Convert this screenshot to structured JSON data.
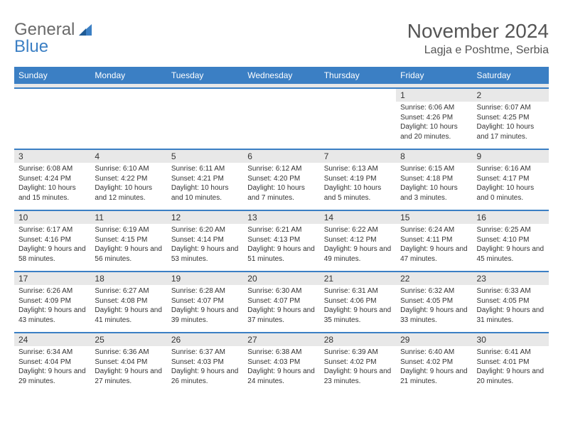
{
  "logo": {
    "word1": "General",
    "word2": "Blue"
  },
  "title": "November 2024",
  "location": "Lagja e Poshtme, Serbia",
  "colors": {
    "accent": "#3b7fc4",
    "header_text": "#ffffff",
    "body_text": "#333333",
    "title_text": "#555555",
    "daynum_bg": "#e8e8e8",
    "logo_gray": "#6a6a6a"
  },
  "day_names": [
    "Sunday",
    "Monday",
    "Tuesday",
    "Wednesday",
    "Thursday",
    "Friday",
    "Saturday"
  ],
  "weeks": [
    [
      {
        "n": "",
        "sr": "",
        "ss": "",
        "dl": ""
      },
      {
        "n": "",
        "sr": "",
        "ss": "",
        "dl": ""
      },
      {
        "n": "",
        "sr": "",
        "ss": "",
        "dl": ""
      },
      {
        "n": "",
        "sr": "",
        "ss": "",
        "dl": ""
      },
      {
        "n": "",
        "sr": "",
        "ss": "",
        "dl": ""
      },
      {
        "n": "1",
        "sr": "Sunrise: 6:06 AM",
        "ss": "Sunset: 4:26 PM",
        "dl": "Daylight: 10 hours and 20 minutes."
      },
      {
        "n": "2",
        "sr": "Sunrise: 6:07 AM",
        "ss": "Sunset: 4:25 PM",
        "dl": "Daylight: 10 hours and 17 minutes."
      }
    ],
    [
      {
        "n": "3",
        "sr": "Sunrise: 6:08 AM",
        "ss": "Sunset: 4:24 PM",
        "dl": "Daylight: 10 hours and 15 minutes."
      },
      {
        "n": "4",
        "sr": "Sunrise: 6:10 AM",
        "ss": "Sunset: 4:22 PM",
        "dl": "Daylight: 10 hours and 12 minutes."
      },
      {
        "n": "5",
        "sr": "Sunrise: 6:11 AM",
        "ss": "Sunset: 4:21 PM",
        "dl": "Daylight: 10 hours and 10 minutes."
      },
      {
        "n": "6",
        "sr": "Sunrise: 6:12 AM",
        "ss": "Sunset: 4:20 PM",
        "dl": "Daylight: 10 hours and 7 minutes."
      },
      {
        "n": "7",
        "sr": "Sunrise: 6:13 AM",
        "ss": "Sunset: 4:19 PM",
        "dl": "Daylight: 10 hours and 5 minutes."
      },
      {
        "n": "8",
        "sr": "Sunrise: 6:15 AM",
        "ss": "Sunset: 4:18 PM",
        "dl": "Daylight: 10 hours and 3 minutes."
      },
      {
        "n": "9",
        "sr": "Sunrise: 6:16 AM",
        "ss": "Sunset: 4:17 PM",
        "dl": "Daylight: 10 hours and 0 minutes."
      }
    ],
    [
      {
        "n": "10",
        "sr": "Sunrise: 6:17 AM",
        "ss": "Sunset: 4:16 PM",
        "dl": "Daylight: 9 hours and 58 minutes."
      },
      {
        "n": "11",
        "sr": "Sunrise: 6:19 AM",
        "ss": "Sunset: 4:15 PM",
        "dl": "Daylight: 9 hours and 56 minutes."
      },
      {
        "n": "12",
        "sr": "Sunrise: 6:20 AM",
        "ss": "Sunset: 4:14 PM",
        "dl": "Daylight: 9 hours and 53 minutes."
      },
      {
        "n": "13",
        "sr": "Sunrise: 6:21 AM",
        "ss": "Sunset: 4:13 PM",
        "dl": "Daylight: 9 hours and 51 minutes."
      },
      {
        "n": "14",
        "sr": "Sunrise: 6:22 AM",
        "ss": "Sunset: 4:12 PM",
        "dl": "Daylight: 9 hours and 49 minutes."
      },
      {
        "n": "15",
        "sr": "Sunrise: 6:24 AM",
        "ss": "Sunset: 4:11 PM",
        "dl": "Daylight: 9 hours and 47 minutes."
      },
      {
        "n": "16",
        "sr": "Sunrise: 6:25 AM",
        "ss": "Sunset: 4:10 PM",
        "dl": "Daylight: 9 hours and 45 minutes."
      }
    ],
    [
      {
        "n": "17",
        "sr": "Sunrise: 6:26 AM",
        "ss": "Sunset: 4:09 PM",
        "dl": "Daylight: 9 hours and 43 minutes."
      },
      {
        "n": "18",
        "sr": "Sunrise: 6:27 AM",
        "ss": "Sunset: 4:08 PM",
        "dl": "Daylight: 9 hours and 41 minutes."
      },
      {
        "n": "19",
        "sr": "Sunrise: 6:28 AM",
        "ss": "Sunset: 4:07 PM",
        "dl": "Daylight: 9 hours and 39 minutes."
      },
      {
        "n": "20",
        "sr": "Sunrise: 6:30 AM",
        "ss": "Sunset: 4:07 PM",
        "dl": "Daylight: 9 hours and 37 minutes."
      },
      {
        "n": "21",
        "sr": "Sunrise: 6:31 AM",
        "ss": "Sunset: 4:06 PM",
        "dl": "Daylight: 9 hours and 35 minutes."
      },
      {
        "n": "22",
        "sr": "Sunrise: 6:32 AM",
        "ss": "Sunset: 4:05 PM",
        "dl": "Daylight: 9 hours and 33 minutes."
      },
      {
        "n": "23",
        "sr": "Sunrise: 6:33 AM",
        "ss": "Sunset: 4:05 PM",
        "dl": "Daylight: 9 hours and 31 minutes."
      }
    ],
    [
      {
        "n": "24",
        "sr": "Sunrise: 6:34 AM",
        "ss": "Sunset: 4:04 PM",
        "dl": "Daylight: 9 hours and 29 minutes."
      },
      {
        "n": "25",
        "sr": "Sunrise: 6:36 AM",
        "ss": "Sunset: 4:04 PM",
        "dl": "Daylight: 9 hours and 27 minutes."
      },
      {
        "n": "26",
        "sr": "Sunrise: 6:37 AM",
        "ss": "Sunset: 4:03 PM",
        "dl": "Daylight: 9 hours and 26 minutes."
      },
      {
        "n": "27",
        "sr": "Sunrise: 6:38 AM",
        "ss": "Sunset: 4:03 PM",
        "dl": "Daylight: 9 hours and 24 minutes."
      },
      {
        "n": "28",
        "sr": "Sunrise: 6:39 AM",
        "ss": "Sunset: 4:02 PM",
        "dl": "Daylight: 9 hours and 23 minutes."
      },
      {
        "n": "29",
        "sr": "Sunrise: 6:40 AM",
        "ss": "Sunset: 4:02 PM",
        "dl": "Daylight: 9 hours and 21 minutes."
      },
      {
        "n": "30",
        "sr": "Sunrise: 6:41 AM",
        "ss": "Sunset: 4:01 PM",
        "dl": "Daylight: 9 hours and 20 minutes."
      }
    ]
  ]
}
